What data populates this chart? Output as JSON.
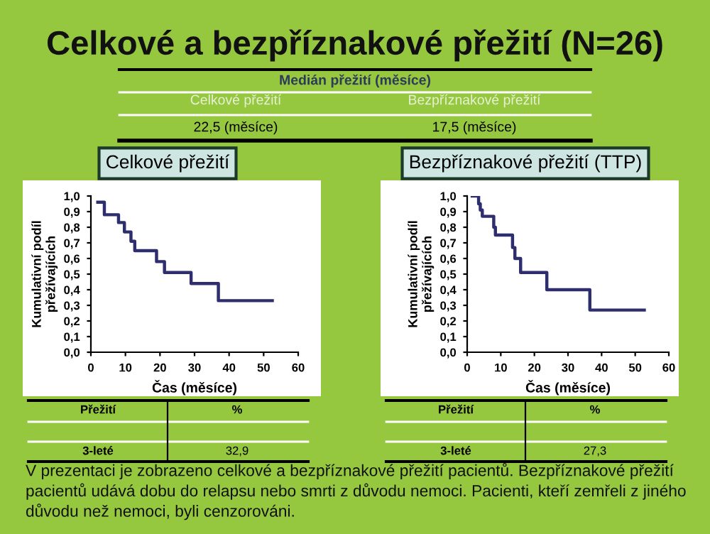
{
  "chart_data": [
    {
      "type": "other",
      "title": "Celkové a bezpříznakové přežití (N=26)",
      "annotations": [
        "Medián přežití (měsíce)",
        "Celkové přežití",
        "Bezpříznakové přežití",
        "22,5 (měsíce)",
        "17,5 (měsíce)",
        "V prezentaci je zobrazeno celkové a bezpříznakové přežití pacientů. Bezpříznakové přežití pacientů udává dobu do relapsu nebo smrti z důvodu nemoci. Pacienti, kteří zemřeli z jiného důvodu než nemoci, byli cenzorováni."
      ]
    },
    {
      "type": "step",
      "title": "Celkové přežití",
      "xlabel": "Čas (měsíce)",
      "ylabel": "Kumulativní podíl\npřežívajících",
      "xlim": [
        0,
        60
      ],
      "xticks": [
        0,
        10,
        20,
        30,
        40,
        50,
        60
      ],
      "ylim": [
        0,
        1
      ],
      "yticks": [
        {
          "value": 0,
          "label": "0,0"
        },
        {
          "value": 0.1,
          "label": "0,1"
        },
        {
          "value": 0.2,
          "label": "0,2"
        },
        {
          "value": 0.3,
          "label": "0,3"
        },
        {
          "value": 0.4,
          "label": "0,4"
        },
        {
          "value": 0.5,
          "label": "0,5"
        },
        {
          "value": 0.6,
          "label": "0,6"
        },
        {
          "value": 0.7,
          "label": "0,7"
        },
        {
          "value": 0.8,
          "label": "0,8"
        },
        {
          "value": 0.9,
          "label": "0,9"
        },
        {
          "value": 1,
          "label": "1,0"
        }
      ],
      "grid": false,
      "legend": false,
      "series": [
        {
          "color": "#2e2e6e",
          "x": [
            2,
            3.9,
            8,
            9.7,
            11.6,
            12.7,
            19,
            21.3,
            29,
            36.9,
            52.5
          ],
          "values": [
            0.96,
            0.88,
            0.83,
            0.77,
            0.71,
            0.65,
            0.58,
            0.51,
            0.44,
            0.33,
            0.33
          ]
        }
      ],
      "annotations": [
        "Přežití",
        "%",
        "3-leté",
        "32,9"
      ]
    },
    {
      "type": "step",
      "title": "Bezpříznakové přežití (TTP)",
      "xlabel": "Čas (měsíce)",
      "ylabel": "Kumulativní podíl\npřežívajících",
      "xlim": [
        0,
        60
      ],
      "xticks": [
        0,
        10,
        20,
        30,
        40,
        50,
        60
      ],
      "ylim": [
        0,
        1
      ],
      "yticks": [
        {
          "value": 0,
          "label": "0,0"
        },
        {
          "value": 0.1,
          "label": "0,1"
        },
        {
          "value": 0.2,
          "label": "0,2"
        },
        {
          "value": 0.3,
          "label": "0,3"
        },
        {
          "value": 0.4,
          "label": "0,4"
        },
        {
          "value": 0.5,
          "label": "0,5"
        },
        {
          "value": 0.6,
          "label": "0,6"
        },
        {
          "value": 0.7,
          "label": "0,7"
        },
        {
          "value": 0.8,
          "label": "0,8"
        },
        {
          "value": 0.9,
          "label": "0,9"
        },
        {
          "value": 1,
          "label": "1,0"
        }
      ],
      "grid": false,
      "legend": false,
      "series": [
        {
          "color": "#2e2e6e",
          "x": [
            1.5,
            3.4,
            3.9,
            4.5,
            7.9,
            8.4,
            13.5,
            14.2,
            15.9,
            23.7,
            36.5,
            52.7
          ],
          "values": [
            1.0,
            0.95,
            0.91,
            0.87,
            0.8,
            0.75,
            0.67,
            0.6,
            0.51,
            0.4,
            0.27,
            0.27
          ]
        }
      ],
      "annotations": [
        "Přežití",
        "%",
        "3-leté",
        "27,3"
      ]
    }
  ]
}
